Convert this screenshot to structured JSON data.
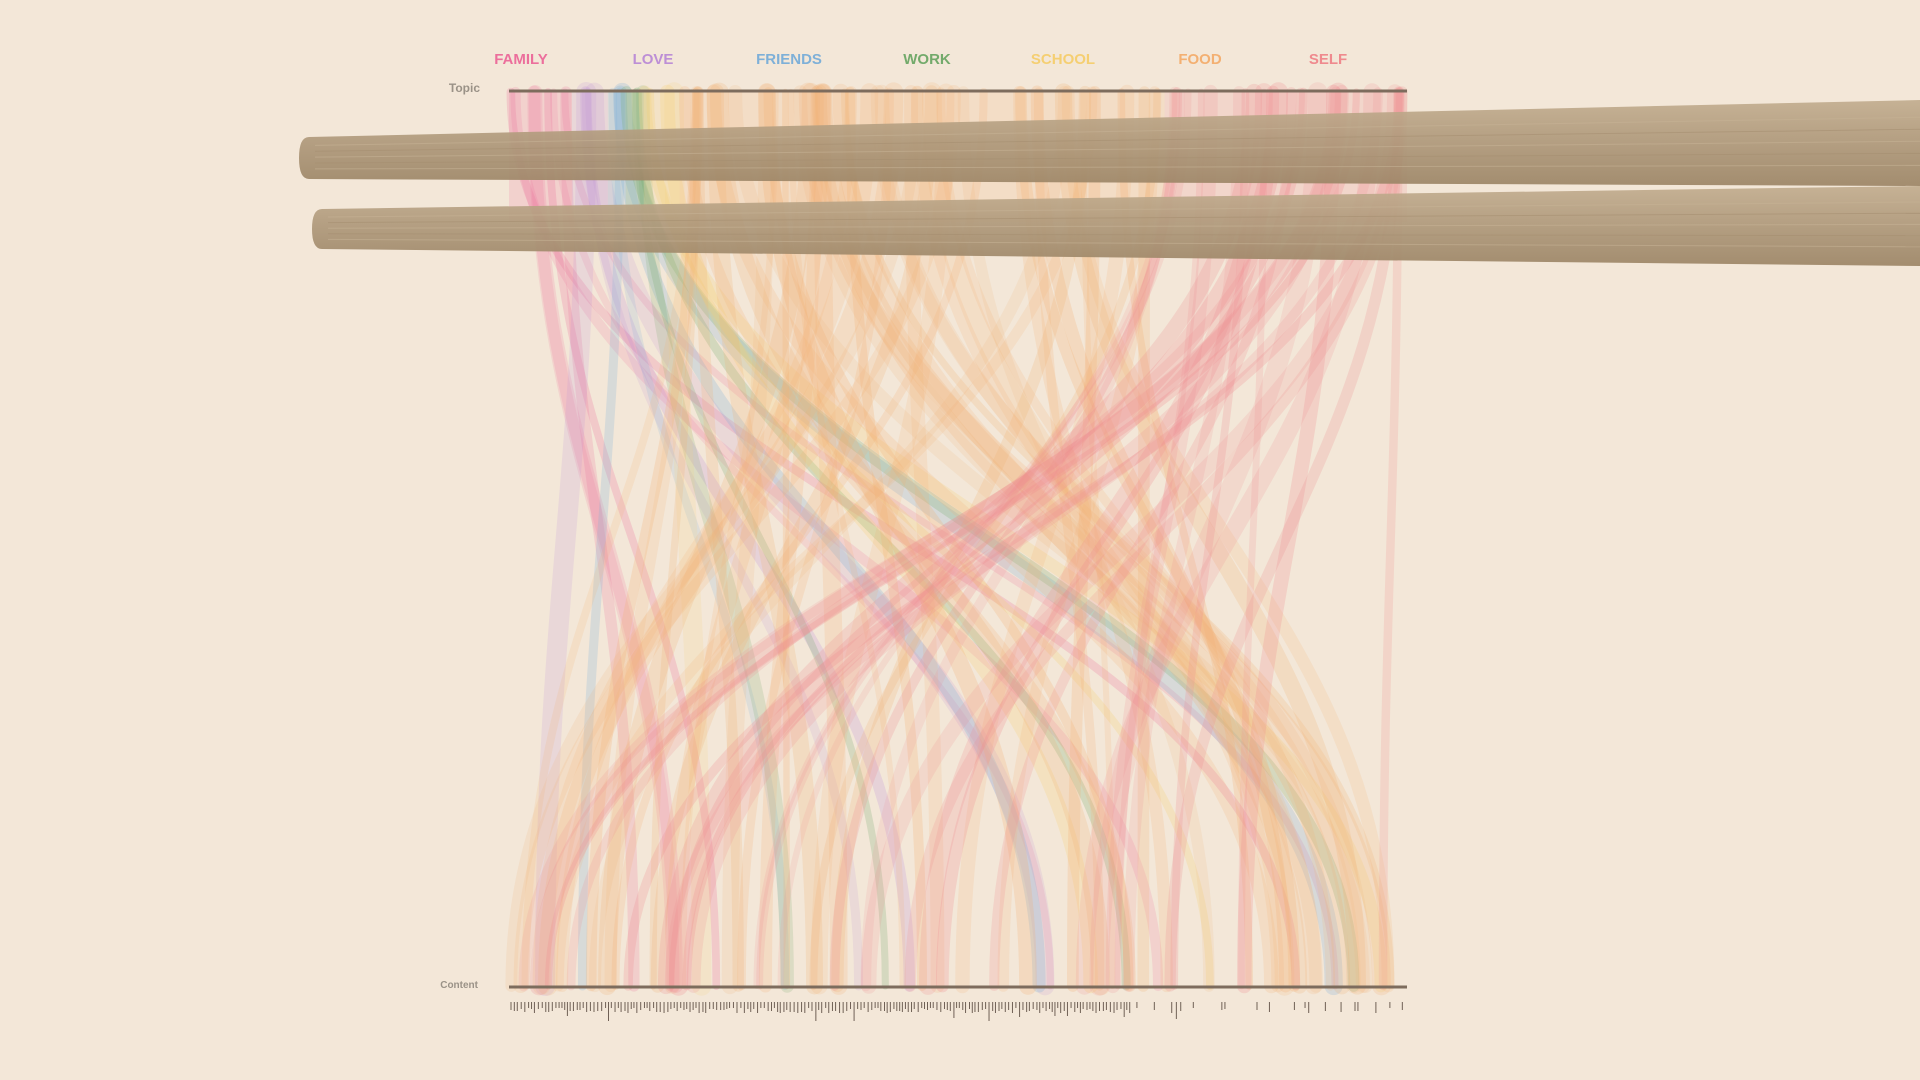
{
  "chart_data": {
    "type": "parallel-sets",
    "title": "",
    "legend": {
      "placement": "top",
      "items": [
        {
          "label": "FAMILY",
          "color": "#ec6f9c"
        },
        {
          "label": "LOVE",
          "color": "#bd8fd6"
        },
        {
          "label": "FRIENDS",
          "color": "#7eb0d8"
        },
        {
          "label": "WORK",
          "color": "#73aa6b"
        },
        {
          "label": "SCHOOL",
          "color": "#f5cf72"
        },
        {
          "label": "FOOD",
          "color": "#f3b072"
        },
        {
          "label": "SELF",
          "color": "#ef8a8e"
        }
      ]
    },
    "axes": {
      "top_label": "Topic",
      "bottom_label": "Content"
    },
    "topic_bands": [
      {
        "category": "FAMILY",
        "share": 0.07
      },
      {
        "category": "LOVE",
        "share": 0.04
      },
      {
        "category": "FRIENDS",
        "share": 0.02
      },
      {
        "category": "WORK",
        "share": 0.02
      },
      {
        "category": "SCHOOL",
        "share": 0.04
      },
      {
        "category": "FOOD",
        "share": 0.54
      },
      {
        "category": "SELF",
        "share": 0.27
      }
    ],
    "grid": false
  },
  "decoration": {
    "chopsticks": {
      "color": "#b59f82",
      "count": 2
    }
  }
}
